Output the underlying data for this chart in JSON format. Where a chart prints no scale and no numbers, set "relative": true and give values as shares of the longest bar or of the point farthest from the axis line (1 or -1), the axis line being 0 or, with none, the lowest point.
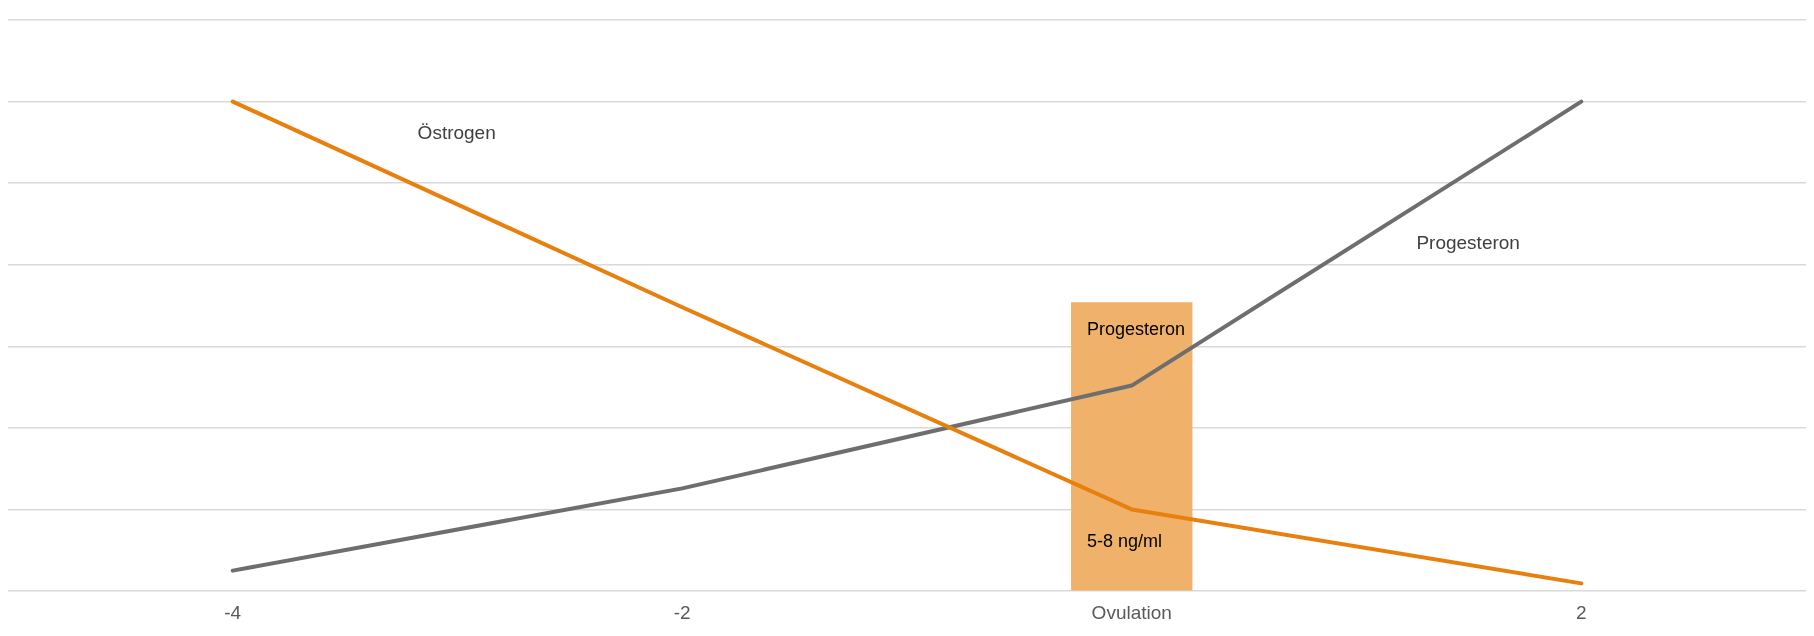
{
  "chart_data": {
    "type": "line",
    "relative": true,
    "grid": "y",
    "legend": false,
    "marker": "none",
    "line_style": "solid",
    "categories": [
      "-4",
      "-2",
      "Ovulation",
      "2"
    ],
    "series": [
      {
        "name": "Östrogen",
        "color": "#e8800e",
        "values": [
          1.0,
          0.58,
          0.167,
          0.016
        ]
      },
      {
        "name": "Progesteron",
        "color": "#6e6e6e",
        "values": [
          0.042,
          0.21,
          0.42,
          1.0
        ]
      },
      {
        "type": "bar",
        "color": "#f0b16b",
        "values": [
          null,
          null,
          0.59,
          null
        ]
      }
    ],
    "annotations": [
      "Progesteron",
      "5-8 ng/ml"
    ]
  }
}
